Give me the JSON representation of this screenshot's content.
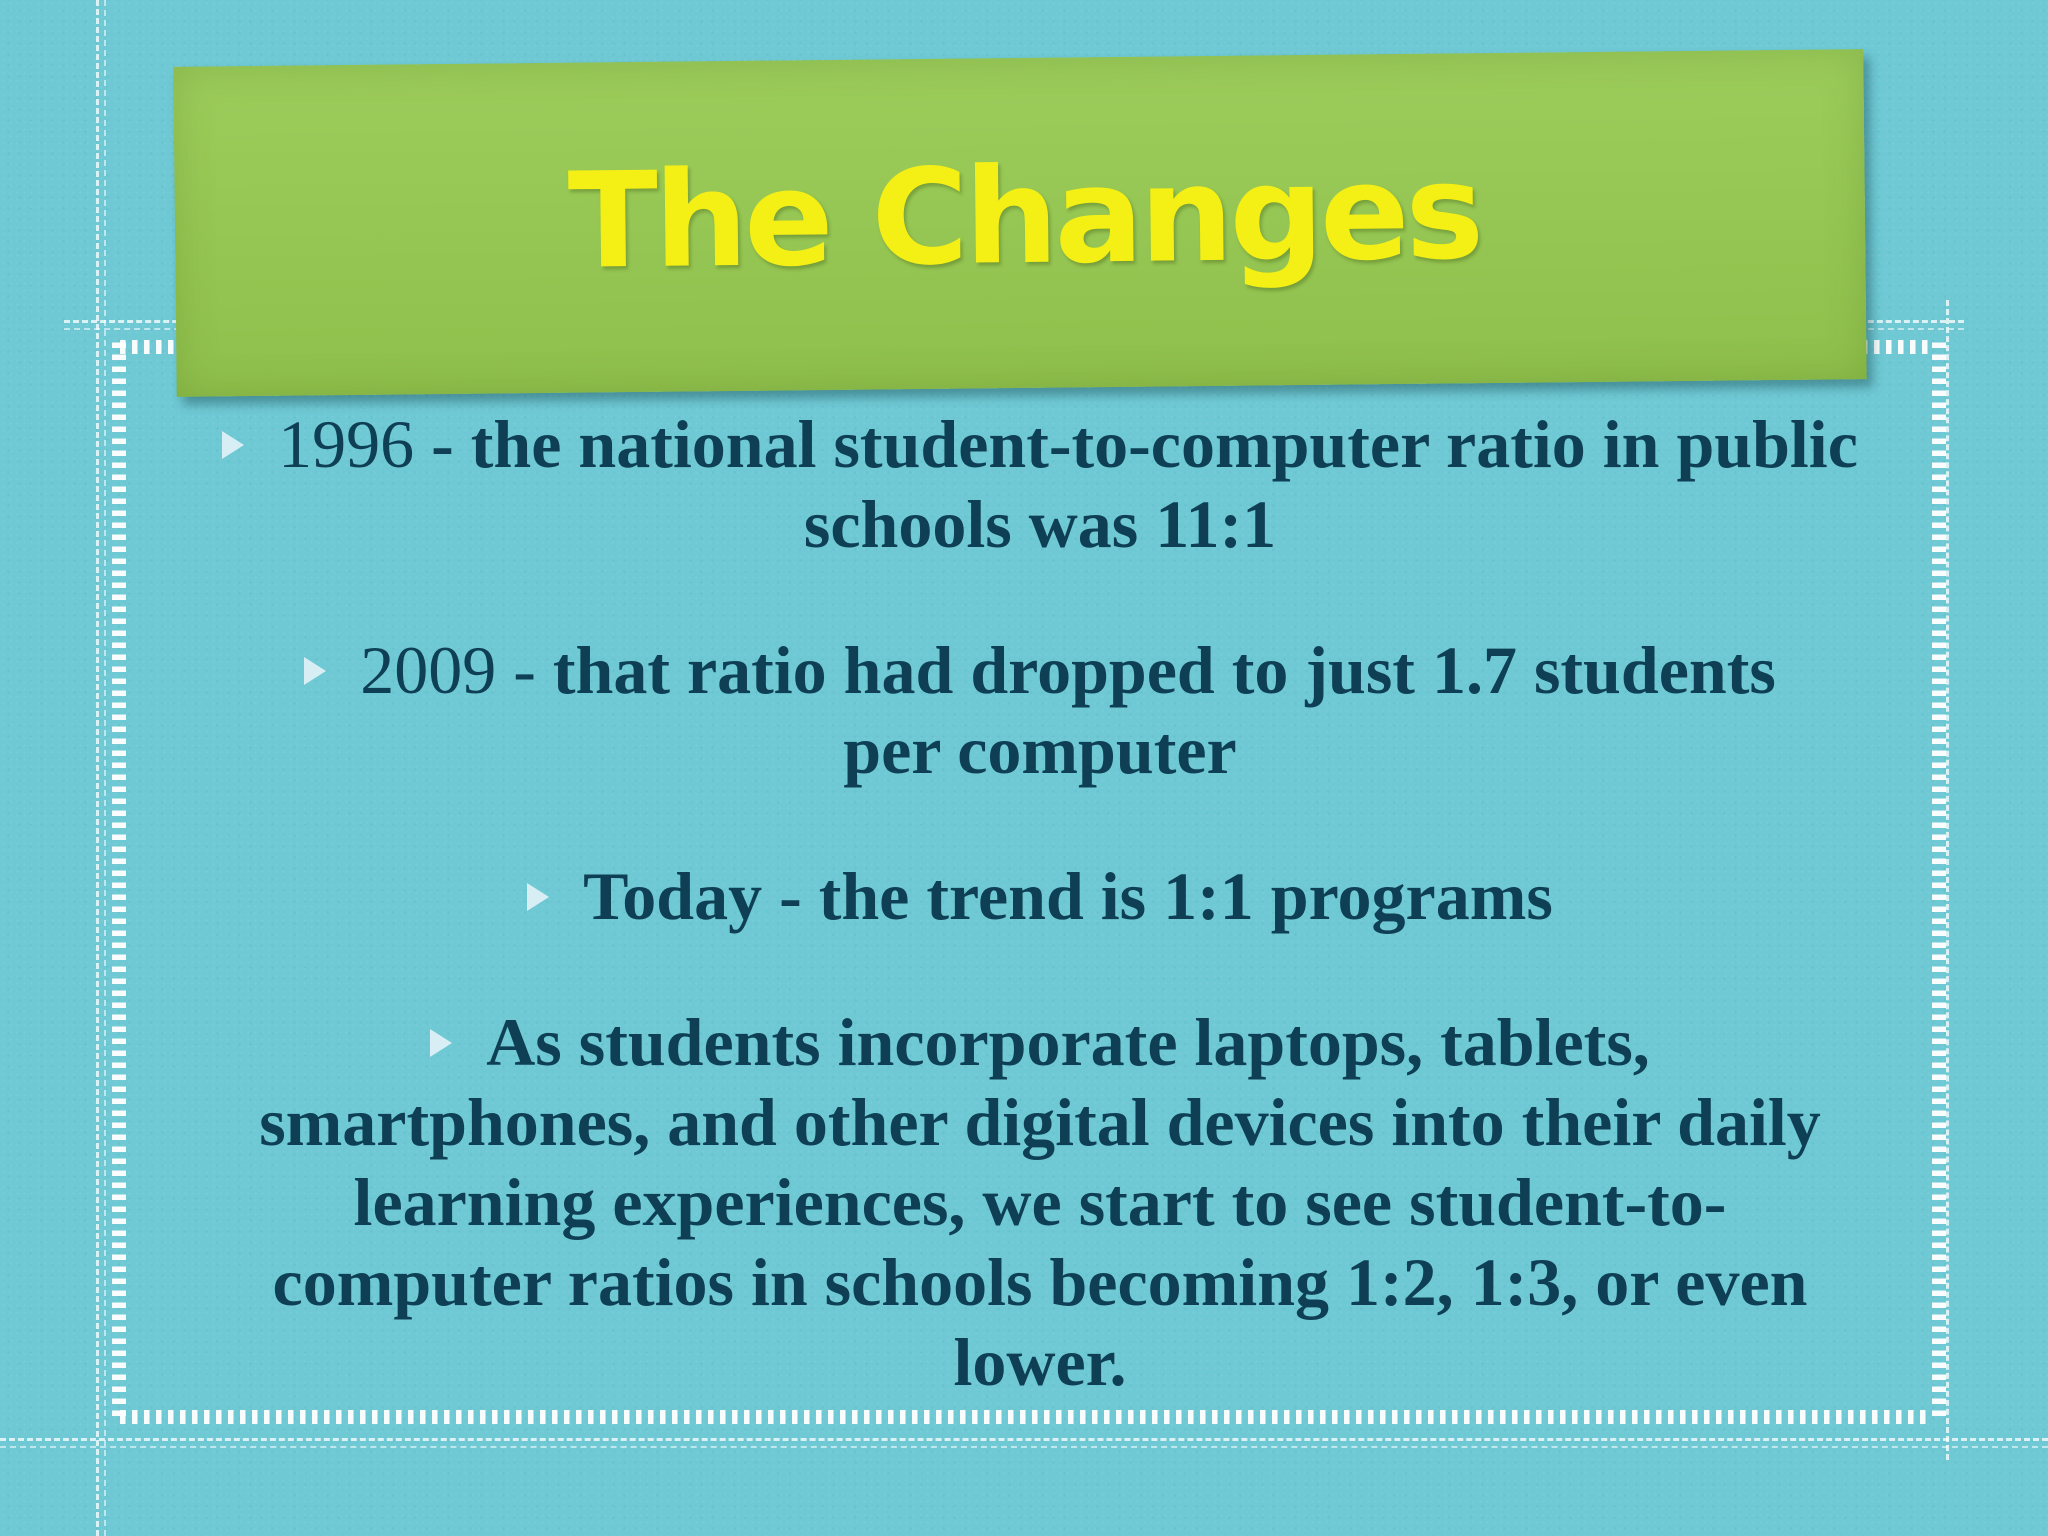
{
  "slide": {
    "title": "The Changes",
    "bullets": [
      {
        "lead": "1996",
        "text": " - the national student-to-computer ratio in public schools was 11:1"
      },
      {
        "lead": "2009 - ",
        "text": " that ratio had dropped to just 1.7 students per computer"
      },
      {
        "lead": "",
        "text": "Today - the trend is 1:1 programs"
      },
      {
        "lead": "",
        "text": "As students incorporate laptops, tablets, smartphones, and other digital devices into their daily learning experiences, we start to see student-to-computer ratios in schools becoming 1:2, 1:3, or even lower."
      }
    ]
  },
  "colors": {
    "background": "#6ec9d4",
    "banner": "#95c552",
    "title": "#f4ef14",
    "body_text": "#0f3f54",
    "stitching": "#ffffff"
  },
  "icons": {
    "bullet": "triangle-bullet-icon"
  }
}
